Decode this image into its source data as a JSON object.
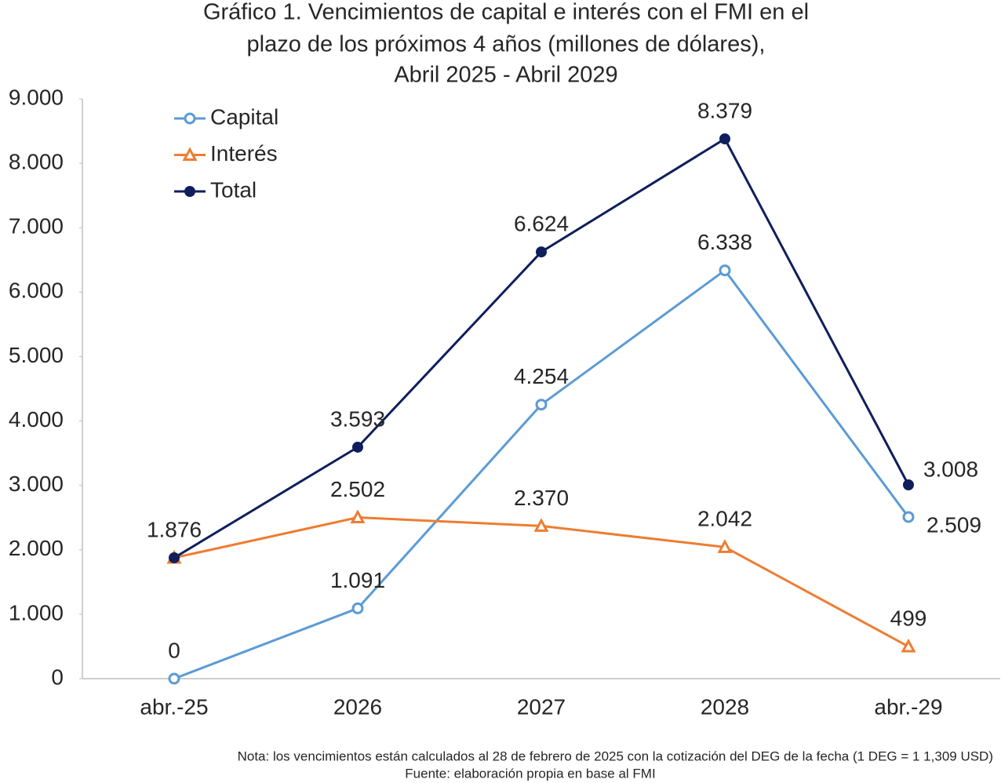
{
  "chart_data": {
    "type": "line",
    "title": [
      "Gráfico 1. Vencimientos de capital e interés con el FMI en el",
      "plazo de los próximos 4 años (millones de dólares),",
      "Abril 2025 - Abril 2029"
    ],
    "categories": [
      "abr.-25",
      "2026",
      "2027",
      "2028",
      "abr.-29"
    ],
    "series": [
      {
        "name": "Capital",
        "color": "#5b9bd5",
        "marker": "open-circle",
        "values": [
          0,
          1091,
          4254,
          6338,
          2509
        ],
        "value_labels": [
          "0",
          "1.091",
          "4.254",
          "6.338",
          "2.509"
        ]
      },
      {
        "name": "Interés",
        "color": "#ed7d31",
        "marker": "open-triangle",
        "values": [
          1876,
          2502,
          2370,
          2042,
          499
        ],
        "value_labels": [
          null,
          "2.502",
          "2.370",
          "2.042",
          "499"
        ]
      },
      {
        "name": "Total",
        "color": "#0f1f5c",
        "marker": "filled-circle",
        "values": [
          1876,
          3593,
          6624,
          8379,
          3008
        ],
        "value_labels": [
          "1.876",
          "3.593",
          "6.624",
          "8.379",
          "3.008"
        ]
      }
    ],
    "ylim": [
      0,
      9000
    ],
    "yticks": [
      0,
      {
        "value": 1000,
        "label": "1.000"
      },
      {
        "value": 2000,
        "label": "2.000"
      },
      {
        "value": 3000,
        "label": "3.000"
      },
      {
        "value": 4000,
        "label": "4.000"
      },
      {
        "value": 5000,
        "label": "5.000"
      },
      {
        "value": 6000,
        "label": "6.000"
      },
      {
        "value": 7000,
        "label": "7.000"
      },
      {
        "value": 8000,
        "label": "8.000"
      },
      {
        "value": 9000,
        "label": "9.000"
      }
    ],
    "grid": false,
    "legend": "upper-left",
    "notes": [
      "Nota: los vencimientos están calculados al 28 de febrero de 2025 con la cotización del DEG de la fecha (1 DEG = 1 1,309 USD)",
      "Fuente: elaboración propia en base al FMI"
    ]
  }
}
